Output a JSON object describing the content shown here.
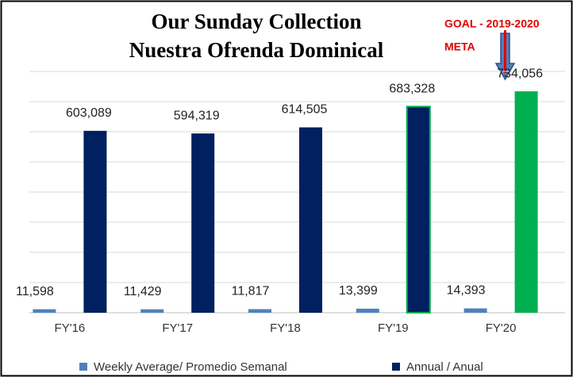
{
  "chart_data": {
    "type": "bar",
    "title": [
      "Our Sunday Collection",
      "Nuestra Ofrenda Dominical"
    ],
    "annotations": [
      "GOAL - 2019-2020",
      "META"
    ],
    "categories": [
      "FY'16",
      "FY'17",
      "FY'18",
      "FY'19",
      "FY'20"
    ],
    "series": [
      {
        "name": "Weekly Average/ Promedio Semanal",
        "color": "#4f81bd",
        "values": [
          11598,
          11429,
          11817,
          13399,
          14393
        ],
        "value_labels": [
          "11,598",
          "11,429",
          "11,817",
          "13,399",
          "14,393"
        ]
      },
      {
        "name": "Annual / Anual",
        "color": "#002060",
        "values": [
          603089,
          594319,
          614505,
          683328,
          734056
        ],
        "value_labels": [
          "603,089",
          "594,319",
          "614,505",
          "683,328",
          "734,056"
        ],
        "point_colors": [
          "#002060",
          "#002060",
          "#002060",
          "#002060",
          "#00b050"
        ],
        "point_strokes": [
          null,
          null,
          null,
          "#00b050",
          null
        ]
      }
    ],
    "ylim": [
      0,
      800000
    ],
    "yticks": [
      0,
      100000,
      200000,
      300000,
      400000,
      500000,
      600000,
      700000,
      800000
    ],
    "grid": true
  }
}
